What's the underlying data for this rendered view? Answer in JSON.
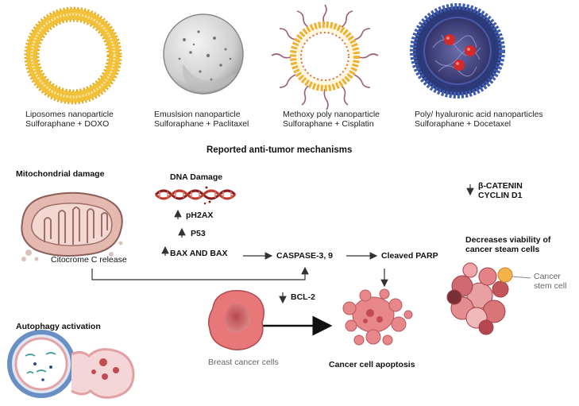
{
  "nanoparticles": [
    {
      "name": "Liposomes  nanoparticle",
      "combo": "Sulforaphane + DOXO"
    },
    {
      "name": "Emuslsion  nanoparticle",
      "combo": "Sulforaphane + Paclitaxel"
    },
    {
      "name": "Methoxy poly nanoparticle",
      "combo": "Sulforaphane + Cisplatin"
    },
    {
      "name": "Poly/ hyaluronic acid nanoparticles",
      "combo": "Sulforaphane + Docetaxel"
    }
  ],
  "section_title": "Reported anti-tumor mechanisms",
  "mechanisms": {
    "mitochondrial_damage": "Mitochondrial damage",
    "citocrome": "Citocrome C release",
    "dna_damage": "DNA Damage",
    "ph2ax": "pH2AX",
    "p53": "P53",
    "bax": "BAX AND BAX",
    "caspase": "CASPASE-3, 9",
    "parp": "Cleaved PARP",
    "bcl2": "BCL-2",
    "catenin": "β-CATENIN",
    "cyclin": "CYCLIN D1",
    "viability_1": "Decreases viability of",
    "viability_2": "cancer steam cells",
    "cancer_stem_1": "Cancer",
    "cancer_stem_2": "stem cell",
    "breast": "Breast cancer cells",
    "apoptosis": "Cancer cell apoptosis",
    "autophagy": "Autophagy activation"
  },
  "colors": {
    "liposome": "#f2c13a",
    "mito": "#d7a9a0",
    "cancer": "#d9686c",
    "autophagy": "#5e84b8"
  }
}
